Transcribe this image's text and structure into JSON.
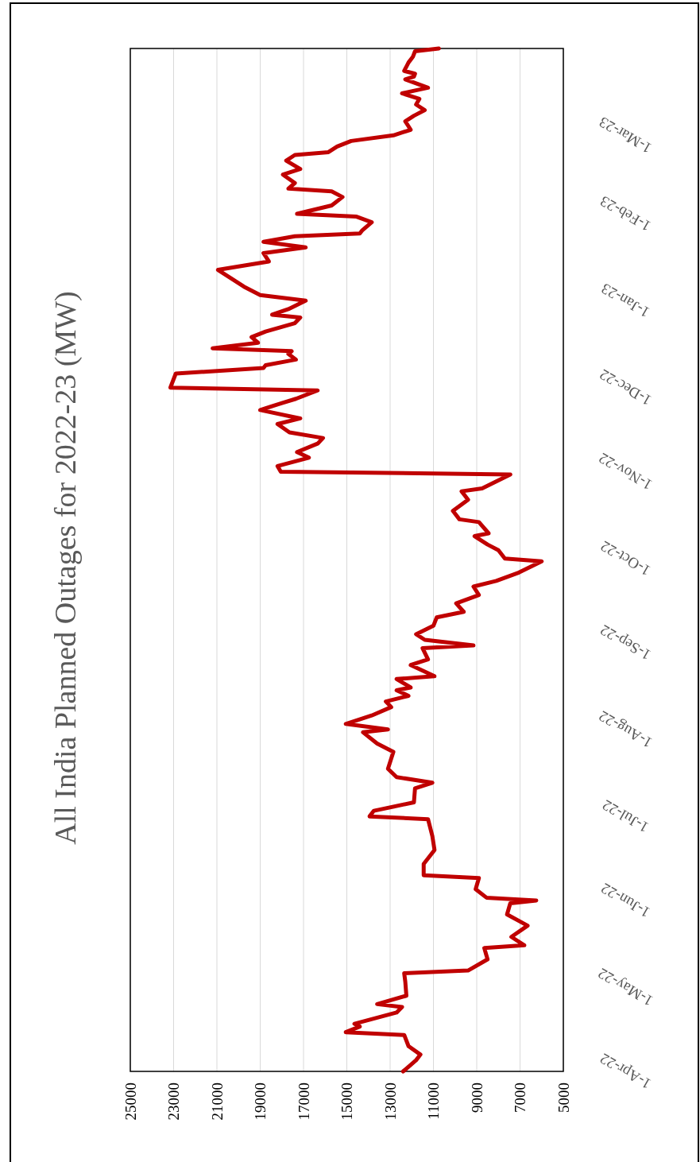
{
  "chart_data": {
    "type": "line",
    "orientation": "horizontal",
    "title": "All India Planned Outages  for 2022-23  (MW)",
    "ylim": [
      "2022-04-01",
      "2023-04-01"
    ],
    "yticks": [
      {
        "value": "2022-04-01",
        "label": "1-Apr-22"
      },
      {
        "value": "2022-05-01",
        "label": "1-May-22"
      },
      {
        "value": "2022-06-01",
        "label": "1-Jun-22"
      },
      {
        "value": "2022-07-01",
        "label": "1-Jul-22"
      },
      {
        "value": "2022-08-01",
        "label": "1-Aug-22"
      },
      {
        "value": "2022-09-01",
        "label": "1-Sep-22"
      },
      {
        "value": "2022-10-01",
        "label": "1-Oct-22"
      },
      {
        "value": "2022-11-01",
        "label": "1-Nov-22"
      },
      {
        "value": "2022-12-01",
        "label": "1-Dec-22"
      },
      {
        "value": "2023-01-01",
        "label": "1-Jan-23"
      },
      {
        "value": "2023-02-01",
        "label": "1-Feb-23"
      },
      {
        "value": "2023-03-01",
        "label": "1-Mar-23"
      }
    ],
    "xlim": [
      25000,
      5000
    ],
    "xticks": [
      25000,
      23000,
      21000,
      19000,
      17000,
      15000,
      13000,
      11000,
      9000,
      7000,
      5000
    ],
    "grid": "x",
    "line_style": "solid",
    "x": [
      "2022-04-01",
      "2022-04-05",
      "2022-04-07",
      "2022-04-10",
      "2022-04-14",
      "2022-04-15",
      "2022-04-17",
      "2022-04-18",
      "2022-04-22",
      "2022-04-24",
      "2022-04-25",
      "2022-04-28",
      "2022-05-03",
      "2022-05-06",
      "2022-05-07",
      "2022-05-11",
      "2022-05-15",
      "2022-05-16",
      "2022-05-19",
      "2022-05-23",
      "2022-05-27",
      "2022-05-31",
      "2022-06-01",
      "2022-06-02",
      "2022-06-05",
      "2022-06-09",
      "2022-06-10",
      "2022-06-14",
      "2022-06-19",
      "2022-06-24",
      "2022-06-30",
      "2022-07-01",
      "2022-07-03",
      "2022-07-06",
      "2022-07-11",
      "2022-07-13",
      "2022-07-15",
      "2022-07-18",
      "2022-07-24",
      "2022-07-27",
      "2022-07-31",
      "2022-08-01",
      "2022-08-03",
      "2022-08-06",
      "2022-08-09",
      "2022-08-11",
      "2022-08-13",
      "2022-08-15",
      "2022-08-16",
      "2022-08-19",
      "2022-08-20",
      "2022-08-22",
      "2022-08-24",
      "2022-08-26",
      "2022-08-30",
      "2022-08-31",
      "2022-09-02",
      "2022-09-04",
      "2022-09-07",
      "2022-09-10",
      "2022-09-12",
      "2022-09-15",
      "2022-09-18",
      "2022-09-21",
      "2022-09-23",
      "2022-09-26",
      "2022-09-30",
      "2022-10-01",
      "2022-10-04",
      "2022-10-06",
      "2022-10-09",
      "2022-10-10",
      "2022-10-14",
      "2022-10-15",
      "2022-10-18",
      "2022-10-22",
      "2022-10-25",
      "2022-10-26",
      "2022-10-31",
      "2022-11-01",
      "2022-11-03",
      "2022-11-06",
      "2022-11-08",
      "2022-11-11",
      "2022-11-13",
      "2022-11-15",
      "2022-11-18",
      "2022-11-20",
      "2022-11-23",
      "2022-11-25",
      "2022-11-27",
      "2022-11-30",
      "2022-12-01",
      "2022-12-06",
      "2022-12-08",
      "2022-12-09",
      "2022-12-11",
      "2022-12-13",
      "2022-12-14",
      "2022-12-15",
      "2022-12-17",
      "2022-12-19",
      "2022-12-21",
      "2022-12-24",
      "2022-12-26",
      "2022-12-27",
      "2022-12-29",
      "2023-01-01",
      "2023-01-03",
      "2023-01-06",
      "2023-01-08",
      "2023-01-12",
      "2023-01-15",
      "2023-01-18",
      "2023-01-20",
      "2023-01-22",
      "2023-01-24",
      "2023-01-25",
      "2023-01-26",
      "2023-01-29",
      "2023-01-31",
      "2023-02-01",
      "2023-02-04",
      "2023-02-07",
      "2023-02-09",
      "2023-02-10",
      "2023-02-12",
      "2023-02-15",
      "2023-02-17",
      "2023-02-20",
      "2023-02-22",
      "2023-02-23",
      "2023-02-25",
      "2023-02-27",
      "2023-03-01",
      "2023-03-03",
      "2023-03-06",
      "2023-03-08",
      "2023-03-10",
      "2023-03-12",
      "2023-03-14",
      "2023-03-16",
      "2023-03-18",
      "2023-03-21",
      "2023-03-22",
      "2023-03-23",
      "2023-03-24",
      "2023-03-27",
      "2023-03-29",
      "2023-03-31",
      "2023-04-01"
    ],
    "series": [
      {
        "color": "#c00000",
        "values": [
          12400,
          11800,
          11600,
          12150,
          12350,
          15050,
          14400,
          14650,
          12700,
          12450,
          13600,
          12250,
          12300,
          12350,
          9400,
          8500,
          8650,
          6800,
          7400,
          6650,
          7600,
          7450,
          6250,
          8550,
          9050,
          8900,
          11450,
          11450,
          10950,
          11050,
          11250,
          13950,
          13750,
          11900,
          11850,
          11050,
          12700,
          13100,
          12850,
          13600,
          14250,
          13100,
          15050,
          13850,
          12950,
          13200,
          12150,
          12700,
          12050,
          12700,
          10950,
          11500,
          12050,
          11250,
          11500,
          9150,
          11400,
          11800,
          11000,
          10850,
          9600,
          9950,
          8900,
          9150,
          8100,
          7050,
          6000,
          7700,
          8000,
          8500,
          9100,
          8450,
          8900,
          9800,
          10100,
          9400,
          9700,
          8750,
          7450,
          18050,
          18200,
          16750,
          17300,
          16350,
          16100,
          17650,
          18200,
          17150,
          19000,
          18200,
          17350,
          16350,
          23150,
          22900,
          18850,
          18750,
          17350,
          17700,
          17550,
          21200,
          19100,
          19400,
          18750,
          17400,
          17150,
          18450,
          17700,
          16900,
          19000,
          19750,
          20150,
          20950,
          18600,
          18850,
          16900,
          18850,
          17400,
          14400,
          14300,
          13850,
          14550,
          17300,
          15700,
          15200,
          15700,
          17700,
          17400,
          17950,
          17150,
          17800,
          17400,
          15850,
          15450,
          14800,
          12850,
          12050,
          12300,
          11900,
          11400,
          11800,
          11650,
          12450,
          11250,
          12300,
          11900,
          11850,
          12350,
          12150,
          11950,
          11850,
          10750
        ]
      }
    ]
  }
}
